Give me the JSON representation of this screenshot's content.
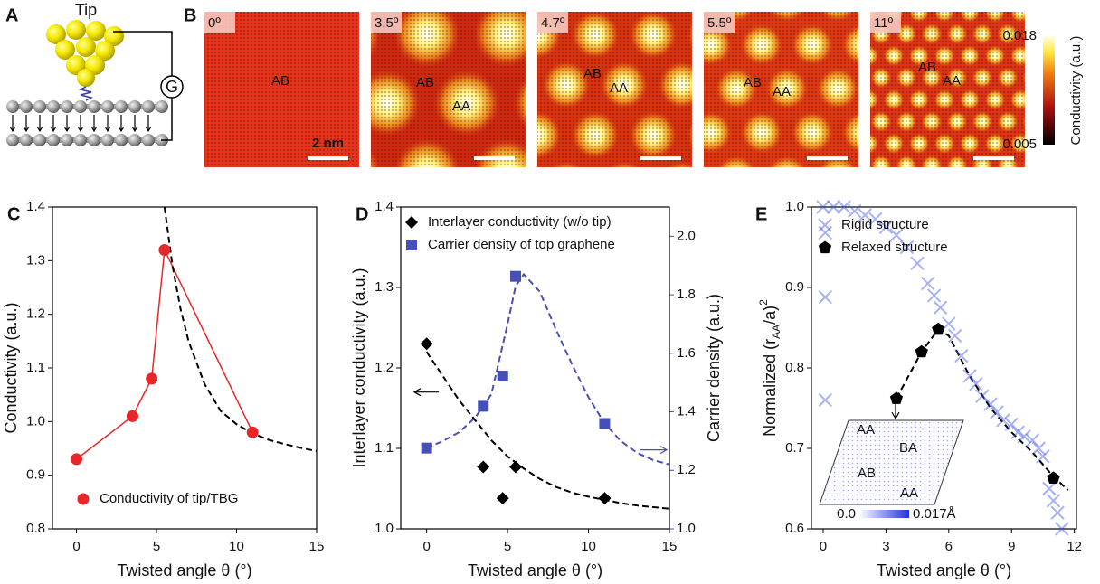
{
  "panel_a": {
    "label": "A",
    "tip": "Tip",
    "meter": "G"
  },
  "panel_b": {
    "label": "B",
    "angles": [
      "0º",
      "3.5º",
      "4.7º",
      "5.5º",
      "11º"
    ],
    "region_labels": [
      [
        "AB"
      ],
      [
        "AB",
        "AA"
      ],
      [
        "AB",
        "AA"
      ],
      [
        "AB",
        "AA"
      ],
      [
        "AB",
        "AA"
      ]
    ],
    "scale_bar": "2 nm",
    "colorbar": {
      "max": 0.018,
      "min": 0.005,
      "label": "Conductivity (a.u.)"
    }
  },
  "chart_data": [
    {
      "type": "scatter",
      "label": "C",
      "xlabel": "Twisted angle θ (°)",
      "ylabel": "Conductivity (a.u.)",
      "xlim": [
        -1.5,
        15
      ],
      "ylim": [
        0.8,
        1.4
      ],
      "xticks": [
        0,
        5,
        10,
        15
      ],
      "yticks": [
        0.8,
        0.9,
        {
          "value": 1,
          "label": "1.0"
        },
        1.1,
        1.2,
        1.3,
        1.4
      ],
      "legend": "lower left",
      "series": [
        {
          "name": "Conductivity of tip/TBG",
          "color": "#e8262a",
          "marker": "circle",
          "line": "solid",
          "x": [
            0,
            3.5,
            4.7,
            5.5,
            11
          ],
          "values": [
            0.93,
            1.01,
            1.08,
            1.32,
            0.98
          ]
        },
        {
          "color": "#000000",
          "line": "dashed",
          "x": [
            5.5,
            6,
            6.5,
            7,
            8,
            9,
            10,
            11,
            12,
            13,
            14,
            15
          ],
          "values": [
            1.4,
            1.29,
            1.21,
            1.15,
            1.07,
            1.02,
            0.995,
            0.978,
            0.966,
            0.958,
            0.951,
            0.945
          ]
        }
      ]
    },
    {
      "type": "scatter",
      "label": "D",
      "xlabel": "Twisted angle θ (°)",
      "ylabel": "Interlayer conductivity (a.u.)",
      "y2label": "Carrier density (a.u.)",
      "y2color": "#4a4fb0",
      "xlim": [
        -1.6,
        15
      ],
      "ylim": [
        1.0,
        1.4
      ],
      "y2lim": [
        1.0,
        2.1
      ],
      "xticks": [
        0,
        5,
        10,
        15
      ],
      "yticks": [
        {
          "value": 1,
          "label": "1.0"
        },
        1.1,
        1.2,
        1.3,
        1.4
      ],
      "y2ticks": [
        {
          "value": 1,
          "label": "1.0"
        },
        1.2,
        1.4,
        1.6,
        1.8,
        {
          "value": 2,
          "label": "2.0"
        }
      ],
      "legend": "upper left",
      "series": [
        {
          "name": "Interlayer conductivity (w/o tip)",
          "color": "#000000",
          "marker": "diamond",
          "x": [
            0,
            3.5,
            4.7,
            5.5,
            11
          ],
          "values": [
            1.23,
            1.077,
            1.038,
            1.077,
            1.038
          ]
        },
        {
          "name": "Carrier density of top graphene",
          "color": "#4650b4",
          "marker": "square",
          "axis": "y2",
          "x": [
            0,
            3.5,
            4.7,
            5.5,
            11
          ],
          "values": [
            1.276,
            1.419,
            1.522,
            1.863,
            1.36
          ]
        },
        {
          "color": "#000000",
          "line": "dashed",
          "x": [
            0,
            1,
            2,
            3,
            4,
            5,
            6,
            7,
            8,
            9,
            10,
            11,
            12,
            13,
            14,
            15
          ],
          "values": [
            1.22,
            1.19,
            1.16,
            1.135,
            1.11,
            1.09,
            1.075,
            1.062,
            1.052,
            1.045,
            1.04,
            1.036,
            1.032,
            1.029,
            1.027,
            1.025
          ]
        },
        {
          "color": "#4a4fb0",
          "line": "dashed",
          "axis": "y2",
          "x": [
            0,
            1,
            2,
            3,
            4,
            5,
            5.5,
            6,
            7,
            8,
            9,
            10,
            11,
            12,
            13,
            14,
            15
          ],
          "values": [
            1.276,
            1.3,
            1.33,
            1.38,
            1.46,
            1.7,
            1.83,
            1.87,
            1.81,
            1.68,
            1.56,
            1.45,
            1.36,
            1.3,
            1.26,
            1.235,
            1.22
          ]
        }
      ]
    },
    {
      "type": "scatter",
      "label": "E",
      "xlabel": "Twisted angle θ (°)",
      "ylabel": [
        "Normalized (r",
        "AA",
        "/a)",
        "2"
      ],
      "xlim": [
        -0.56,
        12.1
      ],
      "ylim": [
        0.6,
        1.0
      ],
      "xticks": [
        0,
        3,
        6,
        9,
        12
      ],
      "yticks": [
        0.6,
        0.7,
        0.8,
        0.9,
        {
          "value": 1,
          "label": "1.0"
        }
      ],
      "legend": "upper right",
      "series": [
        {
          "name": "Rigid structure",
          "color": "#3f51e6",
          "marker": "x",
          "x": [
            0.1,
            0.1,
            0.1,
            0,
            0.5,
            1,
            1.5,
            2,
            2.5,
            3,
            3.5,
            4,
            4.5,
            5,
            5.3,
            5.6,
            6,
            6.3,
            6.6,
            7,
            7.3,
            7.6,
            8,
            8.3,
            8.6,
            9,
            9.3,
            9.6,
            10,
            10.3,
            10.5,
            10.8,
            11,
            11.2,
            11.4
          ],
          "values": [
            0.968,
            0.888,
            0.76,
            1.0,
            1.0,
            1.0,
            0.995,
            0.99,
            0.985,
            0.975,
            0.965,
            0.95,
            0.93,
            0.905,
            0.89,
            0.875,
            0.855,
            0.84,
            0.815,
            0.79,
            0.78,
            0.765,
            0.755,
            0.745,
            0.735,
            0.73,
            0.72,
            0.715,
            0.71,
            0.7,
            0.69,
            0.65,
            0.635,
            0.62,
            0.6
          ]
        },
        {
          "color": "#000000",
          "line": "dashed",
          "x": [
            3.5,
            4.7,
            5.5,
            6,
            7,
            8,
            9,
            10,
            11,
            11.7
          ],
          "values": [
            0.762,
            0.82,
            0.848,
            0.84,
            0.79,
            0.75,
            0.72,
            0.695,
            0.665,
            0.648
          ]
        },
        {
          "name": "Relaxed structure",
          "color": "#000000",
          "marker": "pentagon",
          "x": [
            3.5,
            4.7,
            5.5,
            11
          ],
          "values": [
            0.762,
            0.82,
            0.848,
            0.663
          ]
        }
      ],
      "inset": {
        "labels": [
          "AA",
          "BA",
          "AB",
          "AA"
        ],
        "colorbar": [
          {
            "value": 0,
            "label": "0.0"
          },
          {
            "value": 0.017,
            "label": "0.017Å"
          }
        ]
      }
    }
  ]
}
